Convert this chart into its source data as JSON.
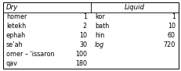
{
  "title_dry": "Dry",
  "title_liquid": "Liquid",
  "dry_rows": [
    [
      "homer",
      "1"
    ],
    [
      "letekh",
      "2"
    ],
    [
      "ephah",
      "10"
    ],
    [
      "se’ah",
      "30"
    ],
    [
      "omer – ‘issaron",
      "100"
    ],
    [
      "qav",
      "180"
    ]
  ],
  "liquid_rows": [
    [
      "kor",
      "1"
    ],
    [
      "bath",
      "10"
    ],
    [
      "hin",
      "60"
    ],
    [
      "log",
      "720"
    ]
  ],
  "bg_color": "#ffffff",
  "border_color": "#000000",
  "text_color": "#000000",
  "font_size": 5.8,
  "header_font_size": 6.2,
  "fig_width": 2.32,
  "fig_height": 0.91,
  "dpi": 100
}
